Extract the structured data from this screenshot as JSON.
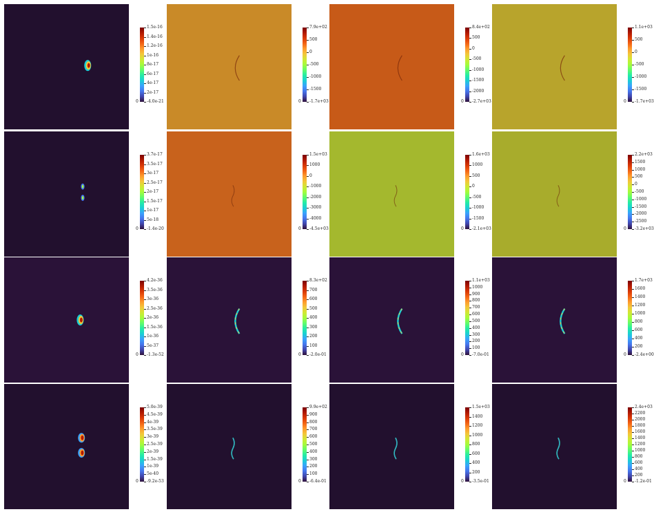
{
  "colors": {
    "jet": [
      "#30123b",
      "#4145ab",
      "#4675ed",
      "#39a2fc",
      "#1bcfd4",
      "#24eca6",
      "#61fc6c",
      "#a4fc3b",
      "#d1e834",
      "#f3c63a",
      "#fe9b2d",
      "#f36315",
      "#d93806",
      "#b11901",
      "#7a0403"
    ],
    "background_dark": "#22102e"
  },
  "chart_data": [
    {
      "type": "heatmap",
      "panel_background": "#22102e",
      "feature": "blob",
      "colorbar_ticks": [
        "1.5e-16",
        "1.4e-16",
        "1.2e-16",
        "1e-16",
        "8e-17",
        "6e-17",
        "4e-17",
        "2e-17",
        "-4.0e-21"
      ],
      "side_label": "0"
    },
    {
      "type": "heatmap",
      "panel_background": "#c98a28",
      "feature": "arc-faint",
      "colorbar_ticks": [
        "7.9e+02",
        "500",
        "0",
        "-500",
        "-1000",
        "-1500",
        "-1.7e+03"
      ],
      "side_label": "0"
    },
    {
      "type": "heatmap",
      "panel_background": "#c75a18",
      "feature": "arc-faint",
      "colorbar_ticks": [
        "8.4e+02",
        "500",
        "0",
        "-500",
        "-1000",
        "-1500",
        "-2000",
        "-2.7e+03"
      ],
      "side_label": "0"
    },
    {
      "type": "heatmap",
      "panel_background": "#b8a42c",
      "feature": "arc-faint",
      "colorbar_ticks": [
        "1.1e+03",
        "500",
        "0",
        "-500",
        "-1000",
        "-1500",
        "-1.7e+03"
      ],
      "side_label": "0"
    },
    {
      "type": "heatmap",
      "panel_background": "#22102e",
      "feature": "split-blob",
      "colorbar_ticks": [
        "3.7e-17",
        "3.5e-17",
        "3e-17",
        "2.5e-17",
        "2e-17",
        "1.5e-17",
        "1e-17",
        "5e-18",
        "-1.4e-20"
      ],
      "side_label": "0"
    },
    {
      "type": "heatmap",
      "panel_background": "#c8621c",
      "feature": "wave-faint",
      "colorbar_ticks": [
        "1.5e+03",
        "1000",
        "0",
        "-1000",
        "-2000",
        "-3000",
        "-4000",
        "-4.5e+03"
      ],
      "side_label": "0"
    },
    {
      "type": "heatmap",
      "panel_background": "#a4b82e",
      "feature": "wave-faint",
      "colorbar_ticks": [
        "1.6e+03",
        "1000",
        "500",
        "0",
        "-500",
        "-1000",
        "-1500",
        "-2.1e+03"
      ],
      "side_label": "0"
    },
    {
      "type": "heatmap",
      "panel_background": "#a8ac2c",
      "feature": "wave-faint",
      "colorbar_ticks": [
        "2.2e+03",
        "1500",
        "1000",
        "500",
        "0",
        "-500",
        "-1000",
        "-1500",
        "-2000",
        "-2500",
        "-3.2e+03"
      ],
      "side_label": "0"
    },
    {
      "type": "heatmap",
      "panel_background": "#2a1238",
      "feature": "blob-left",
      "colorbar_ticks": [
        "4.2e-36",
        "3.5e-36",
        "3e-36",
        "2.5e-36",
        "2e-36",
        "1.5e-36",
        "1e-36",
        "5e-37",
        "-1.3e-52"
      ],
      "side_label": "0"
    },
    {
      "type": "heatmap",
      "panel_background": "#2a1238",
      "feature": "arc",
      "colorbar_ticks": [
        "8.3e+02",
        "700",
        "600",
        "500",
        "400",
        "300",
        "200",
        "100",
        "-2.0e-01"
      ],
      "side_label": "0"
    },
    {
      "type": "heatmap",
      "panel_background": "#2a1238",
      "feature": "arc",
      "colorbar_ticks": [
        "1.1e+03",
        "1000",
        "900",
        "800",
        "700",
        "600",
        "500",
        "400",
        "300",
        "200",
        "100",
        "-7.0e-01"
      ],
      "side_label": "0"
    },
    {
      "type": "heatmap",
      "panel_background": "#2a1238",
      "feature": "arc",
      "colorbar_ticks": [
        "1.7e+03",
        "1600",
        "1400",
        "1200",
        "1000",
        "800",
        "600",
        "400",
        "200",
        "-2.4e+00"
      ],
      "side_label": "0"
    },
    {
      "type": "heatmap",
      "panel_background": "#22102e",
      "feature": "double-blob",
      "colorbar_ticks": [
        "5.0e-39",
        "4.5e-39",
        "4e-39",
        "3.5e-39",
        "3e-39",
        "2.5e-39",
        "2e-39",
        "1.5e-39",
        "1e-39",
        "5e-40",
        "-9.2e-53"
      ],
      "side_label": "0"
    },
    {
      "type": "heatmap",
      "panel_background": "#22102e",
      "feature": "wave",
      "colorbar_ticks": [
        "9.9e+02",
        "900",
        "800",
        "700",
        "600",
        "500",
        "400",
        "300",
        "200",
        "100",
        "-6.4e-01"
      ],
      "side_label": "0"
    },
    {
      "type": "heatmap",
      "panel_background": "#22102e",
      "feature": "wave",
      "colorbar_ticks": [
        "1.5e+03",
        "1400",
        "1200",
        "1000",
        "800",
        "600",
        "400",
        "200",
        "-3.5e-01"
      ],
      "side_label": "0"
    },
    {
      "type": "heatmap",
      "panel_background": "#22102e",
      "feature": "wave",
      "colorbar_ticks": [
        "2.4e+03",
        "2200",
        "2000",
        "1800",
        "1600",
        "1400",
        "1200",
        "1000",
        "800",
        "600",
        "400",
        "200",
        "-1.2e-01"
      ],
      "side_label": "0"
    }
  ]
}
